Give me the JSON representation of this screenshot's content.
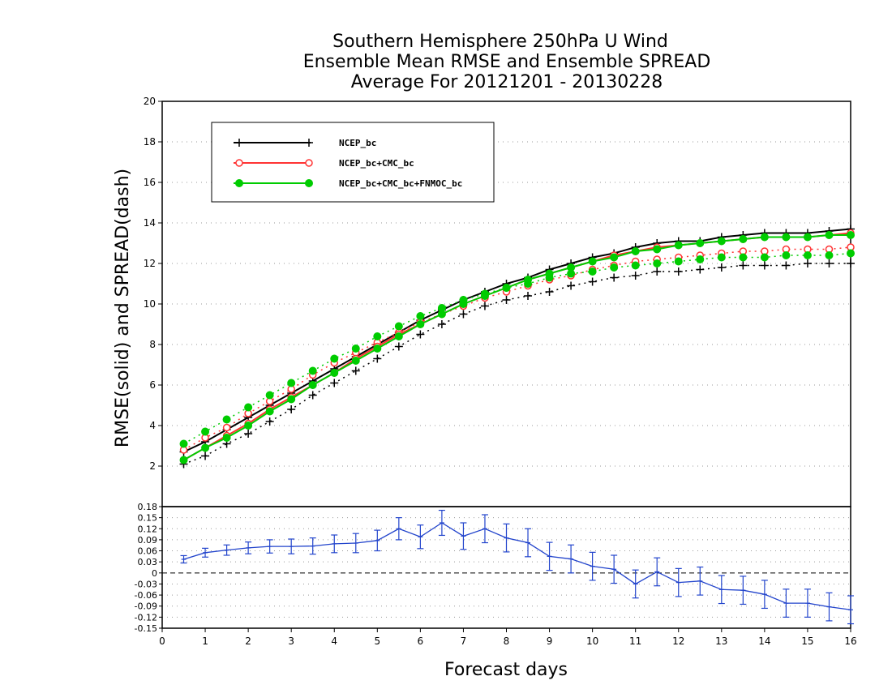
{
  "title_lines": [
    "Southern Hemisphere 250hPa U Wind",
    "Ensemble Mean RMSE and Ensemble SPREAD",
    "Average For 20121201 - 20130228"
  ],
  "chart_data": [
    {
      "type": "line",
      "title": "Southern Hemisphere 250hPa U Wind Ensemble Mean RMSE and Ensemble SPREAD Average For 20121201 - 20130228",
      "xlabel": "Forecast days",
      "ylabel": "RMSE(solid) and SPREAD(dash)",
      "xlim": [
        0,
        16
      ],
      "ylim": [
        0,
        20
      ],
      "x_ticks": [
        0,
        1,
        2,
        3,
        4,
        5,
        6,
        7,
        8,
        9,
        10,
        11,
        12,
        13,
        14,
        15,
        16
      ],
      "y_ticks": [
        2,
        4,
        6,
        8,
        10,
        12,
        14,
        16,
        18,
        20
      ],
      "grid": true,
      "legend_position": "top-left",
      "x": [
        0.5,
        1,
        1.5,
        2,
        2.5,
        3,
        3.5,
        4,
        4.5,
        5,
        5.5,
        6,
        6.5,
        7,
        7.5,
        8,
        8.5,
        9,
        9.5,
        10,
        10.5,
        11,
        11.5,
        12,
        12.5,
        13,
        13.5,
        14,
        14.5,
        15,
        15.5,
        16
      ],
      "series": [
        {
          "name": "NCEP_bc",
          "color": "#000000",
          "marker": "plus",
          "rmse": [
            2.7,
            3.2,
            3.8,
            4.4,
            5.0,
            5.6,
            6.2,
            6.8,
            7.4,
            8.0,
            8.6,
            9.2,
            9.7,
            10.2,
            10.6,
            11.0,
            11.3,
            11.7,
            12.0,
            12.3,
            12.5,
            12.8,
            13.0,
            13.1,
            13.1,
            13.3,
            13.4,
            13.5,
            13.5,
            13.5,
            13.6,
            13.7
          ],
          "spread": [
            2.1,
            2.5,
            3.1,
            3.6,
            4.2,
            4.8,
            5.5,
            6.1,
            6.7,
            7.3,
            7.9,
            8.5,
            9.0,
            9.5,
            9.9,
            10.2,
            10.4,
            10.6,
            10.9,
            11.1,
            11.3,
            11.4,
            11.6,
            11.6,
            11.7,
            11.8,
            11.9,
            11.9,
            11.9,
            12.0,
            12.0,
            12.0
          ]
        },
        {
          "name": "NCEP_bc+CMC_bc",
          "color": "#ff3333",
          "marker": "open-circle",
          "rmse": [
            2.3,
            2.9,
            3.5,
            4.1,
            4.8,
            5.4,
            6.0,
            6.6,
            7.3,
            7.9,
            8.5,
            9.0,
            9.5,
            10.0,
            10.4,
            10.8,
            11.2,
            11.5,
            11.8,
            12.1,
            12.4,
            12.6,
            12.8,
            12.9,
            13.0,
            13.1,
            13.2,
            13.3,
            13.3,
            13.3,
            13.4,
            13.5
          ],
          "spread": [
            2.8,
            3.4,
            3.9,
            4.6,
            5.2,
            5.8,
            6.5,
            7.1,
            7.6,
            8.1,
            8.6,
            9.1,
            9.5,
            9.9,
            10.3,
            10.6,
            10.9,
            11.2,
            11.4,
            11.7,
            11.9,
            12.1,
            12.2,
            12.3,
            12.4,
            12.5,
            12.6,
            12.6,
            12.7,
            12.7,
            12.7,
            12.8
          ]
        },
        {
          "name": "NCEP_bc+CMC_bc+FNMOC_bc",
          "color": "#00cc00",
          "marker": "filled-circle",
          "rmse": [
            2.3,
            2.9,
            3.4,
            4.0,
            4.7,
            5.3,
            6.0,
            6.6,
            7.2,
            7.8,
            8.4,
            9.0,
            9.5,
            10.0,
            10.4,
            10.8,
            11.2,
            11.5,
            11.8,
            12.1,
            12.3,
            12.6,
            12.7,
            12.9,
            13.0,
            13.1,
            13.2,
            13.3,
            13.3,
            13.3,
            13.4,
            13.4
          ],
          "spread": [
            3.1,
            3.7,
            4.3,
            4.9,
            5.5,
            6.1,
            6.7,
            7.3,
            7.8,
            8.4,
            8.9,
            9.4,
            9.8,
            10.2,
            10.5,
            10.8,
            11.0,
            11.3,
            11.5,
            11.6,
            11.8,
            11.9,
            12.0,
            12.1,
            12.2,
            12.3,
            12.3,
            12.3,
            12.4,
            12.4,
            12.4,
            12.5
          ]
        }
      ]
    },
    {
      "type": "line",
      "xlabel": "Forecast days",
      "ylabel": "",
      "xlim": [
        0,
        16
      ],
      "ylim": [
        -0.15,
        0.18
      ],
      "y_ticks": [
        0.18,
        0.15,
        0.12,
        0.09,
        0.06,
        0.03,
        0,
        -0.03,
        -0.06,
        -0.09,
        -0.12,
        -0.15
      ],
      "y_tick_labels": [
        "0.18",
        "0.15",
        "0.12",
        "0.09",
        "0.06",
        "0.03",
        "0",
        "-0.03",
        "-0.06",
        "-0.09",
        "-0.12",
        "-0.15"
      ],
      "grid": true,
      "zero_line": true,
      "series": [
        {
          "color": "#2244cc",
          "x": [
            0.5,
            1,
            1.5,
            2,
            2.5,
            3,
            3.5,
            4,
            4.5,
            5,
            5.5,
            6,
            6.5,
            7,
            7.5,
            8,
            8.5,
            9,
            9.5,
            10,
            10.5,
            11,
            11.5,
            12,
            12.5,
            13,
            13.5,
            14,
            14.5,
            15,
            15.5,
            16
          ],
          "values": [
            0.037,
            0.055,
            0.062,
            0.068,
            0.072,
            0.072,
            0.073,
            0.079,
            0.081,
            0.088,
            0.12,
            0.098,
            0.136,
            0.1,
            0.12,
            0.095,
            0.082,
            0.045,
            0.038,
            0.018,
            0.01,
            -0.03,
            0.003,
            -0.026,
            -0.022,
            -0.045,
            -0.047,
            -0.058,
            -0.082,
            -0.082,
            -0.092,
            -0.1
          ],
          "error": [
            0.01,
            0.012,
            0.014,
            0.016,
            0.018,
            0.02,
            0.022,
            0.024,
            0.026,
            0.028,
            0.03,
            0.032,
            0.034,
            0.036,
            0.038,
            0.038,
            0.038,
            0.038,
            0.038,
            0.038,
            0.038,
            0.038,
            0.038,
            0.038,
            0.038,
            0.038,
            0.038,
            0.038,
            0.038,
            0.038,
            0.038,
            0.038
          ]
        }
      ]
    }
  ],
  "legend": [
    {
      "label": "NCEP_bc",
      "color": "#000000",
      "marker": "plus"
    },
    {
      "label": "NCEP_bc+CMC_bc",
      "color": "#ff3333",
      "marker": "open-circle"
    },
    {
      "label": "NCEP_bc+CMC_bc+FNMOC_bc",
      "color": "#00cc00",
      "marker": "filled-circle"
    }
  ]
}
